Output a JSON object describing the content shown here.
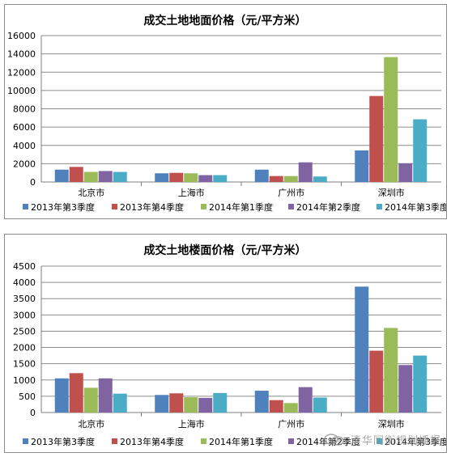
{
  "chart_data": [
    {
      "type": "bar",
      "title": "成交土地地面价格（元/平方米）",
      "categories": [
        "北京市",
        "上海市",
        "广州市",
        "深圳市"
      ],
      "series": [
        {
          "name": "2013年第3季度",
          "color": "#4f81bd",
          "values": [
            1350,
            950,
            1350,
            3450
          ]
        },
        {
          "name": "2013年第4季度",
          "color": "#c0504d",
          "values": [
            1650,
            1000,
            650,
            9400
          ]
        },
        {
          "name": "2014年第1季度",
          "color": "#9bbb59",
          "values": [
            1100,
            950,
            650,
            13650
          ]
        },
        {
          "name": "2014年第2季度",
          "color": "#8064a2",
          "values": [
            1200,
            750,
            2150,
            2050
          ]
        },
        {
          "name": "2014年第3季度",
          "color": "#4bacc6",
          "values": [
            1100,
            750,
            600,
            6850
          ]
        }
      ],
      "yticks": [
        "0",
        "2000",
        "4000",
        "6000",
        "8000",
        "10000",
        "12000",
        "14000",
        "16000"
      ],
      "ylim": [
        0,
        16000
      ],
      "xlabel": "",
      "ylabel": "",
      "grid": true,
      "legend": "bottom"
    },
    {
      "type": "bar",
      "title": "成交土地楼面价格（元/平方米）",
      "categories": [
        "北京市",
        "上海市",
        "广州市",
        "深圳市"
      ],
      "series": [
        {
          "name": "2013年第3季度",
          "color": "#4f81bd",
          "values": [
            1050,
            540,
            670,
            3870
          ]
        },
        {
          "name": "2013年第4季度",
          "color": "#c0504d",
          "values": [
            1210,
            590,
            380,
            1900
          ]
        },
        {
          "name": "2014年第1季度",
          "color": "#9bbb59",
          "values": [
            760,
            470,
            290,
            2600
          ]
        },
        {
          "name": "2014年第2季度",
          "color": "#8064a2",
          "values": [
            1050,
            450,
            780,
            1460
          ]
        },
        {
          "name": "2014年第3季度",
          "color": "#4bacc6",
          "values": [
            580,
            600,
            460,
            1750
          ]
        }
      ],
      "yticks": [
        "0",
        "500",
        "1000",
        "1500",
        "2000",
        "2500",
        "3000",
        "3500",
        "4000",
        "4500"
      ],
      "ylim": [
        0,
        4500
      ],
      "xlabel": "",
      "ylabel": "",
      "grid": true,
      "legend": "bottom"
    }
  ],
  "watermark": {
    "text": "清华同衡规划播报",
    "icon": "wechat-icon"
  }
}
